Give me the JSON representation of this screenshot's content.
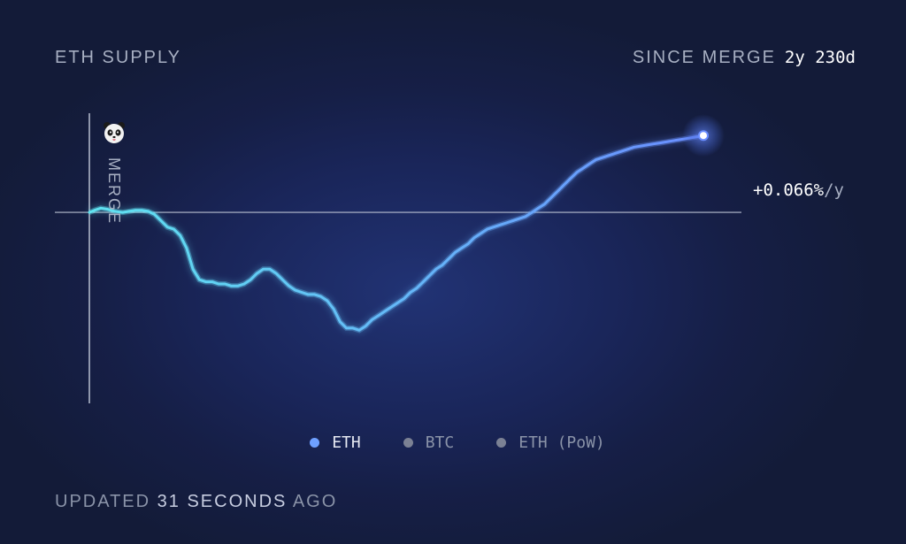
{
  "header": {
    "title": "ETH SUPPLY",
    "since_label": "SINCE MERGE",
    "since_value": "2y 230d"
  },
  "annotation": {
    "rate_value": "+0.066%",
    "rate_unit": "/y",
    "merge_label": "MERGE",
    "merge_icon": "panda-icon"
  },
  "legend": [
    {
      "label": "ETH",
      "color": "#6ea0ff",
      "active": true
    },
    {
      "label": "BTC",
      "color": "#7b8194",
      "active": false
    },
    {
      "label": "ETH (PoW)",
      "color": "#7b8194",
      "active": false
    }
  ],
  "footer": {
    "prefix": "UPDATED",
    "number": "31",
    "unit": "SECONDS",
    "suffix": "AGO"
  },
  "colors": {
    "line_start": "#5fe3f0",
    "line_end": "#6a8dff",
    "baseline": "#b8bfd0",
    "background": "#141c34"
  },
  "chart_data": {
    "type": "line",
    "title": "ETH SUPPLY",
    "xlabel": "",
    "ylabel": "",
    "x_unit": "days since merge",
    "xlim": [
      0,
      960
    ],
    "ylim": [
      -1.0,
      0.45
    ],
    "baseline": 0,
    "grid": false,
    "legend_position": "bottom",
    "series": [
      {
        "name": "ETH",
        "x": [
          0,
          8,
          18,
          28,
          40,
          52,
          62,
          72,
          82,
          92,
          102,
          112,
          122,
          132,
          142,
          152,
          162,
          172,
          182,
          192,
          202,
          212,
          222,
          232,
          242,
          252,
          262,
          272,
          282,
          292,
          302,
          312,
          322,
          332,
          342,
          352,
          362,
          372,
          382,
          392,
          402,
          412,
          422,
          432,
          442,
          452,
          462,
          472,
          482,
          492,
          502,
          512,
          522,
          532,
          542,
          552,
          562,
          572,
          582,
          592,
          602,
          612,
          622,
          632,
          642,
          652,
          662,
          672,
          682,
          692,
          702,
          712,
          722,
          732,
          742,
          752,
          762,
          772,
          782,
          792,
          802,
          812,
          822,
          832,
          842,
          852,
          862,
          872,
          882,
          892,
          902,
          912,
          922,
          932,
          942,
          952,
          960
        ],
        "y": [
          0.0,
          0.01,
          0.02,
          0.015,
          0.005,
          0.0,
          0.005,
          0.01,
          0.01,
          0.005,
          -0.01,
          -0.04,
          -0.07,
          -0.08,
          -0.11,
          -0.17,
          -0.27,
          -0.32,
          -0.33,
          -0.33,
          -0.34,
          -0.34,
          -0.35,
          -0.35,
          -0.34,
          -0.32,
          -0.29,
          -0.27,
          -0.27,
          -0.29,
          -0.32,
          -0.35,
          -0.37,
          -0.38,
          -0.39,
          -0.39,
          -0.4,
          -0.42,
          -0.46,
          -0.52,
          -0.55,
          -0.55,
          -0.56,
          -0.54,
          -0.51,
          -0.49,
          -0.47,
          -0.45,
          -0.43,
          -0.41,
          -0.38,
          -0.36,
          -0.33,
          -0.3,
          -0.27,
          -0.25,
          -0.22,
          -0.19,
          -0.17,
          -0.15,
          -0.12,
          -0.1,
          -0.08,
          -0.07,
          -0.06,
          -0.05,
          -0.04,
          -0.03,
          -0.02,
          0.0,
          0.02,
          0.04,
          0.07,
          0.1,
          0.13,
          0.16,
          0.19,
          0.21,
          0.23,
          0.25,
          0.26,
          0.27,
          0.28,
          0.29,
          0.3,
          0.31,
          0.315,
          0.32,
          0.325,
          0.33,
          0.335,
          0.34,
          0.345,
          0.35,
          0.355,
          0.36,
          0.365
        ]
      }
    ],
    "annotations": [
      "MERGE",
      "+0.066%/y"
    ]
  }
}
